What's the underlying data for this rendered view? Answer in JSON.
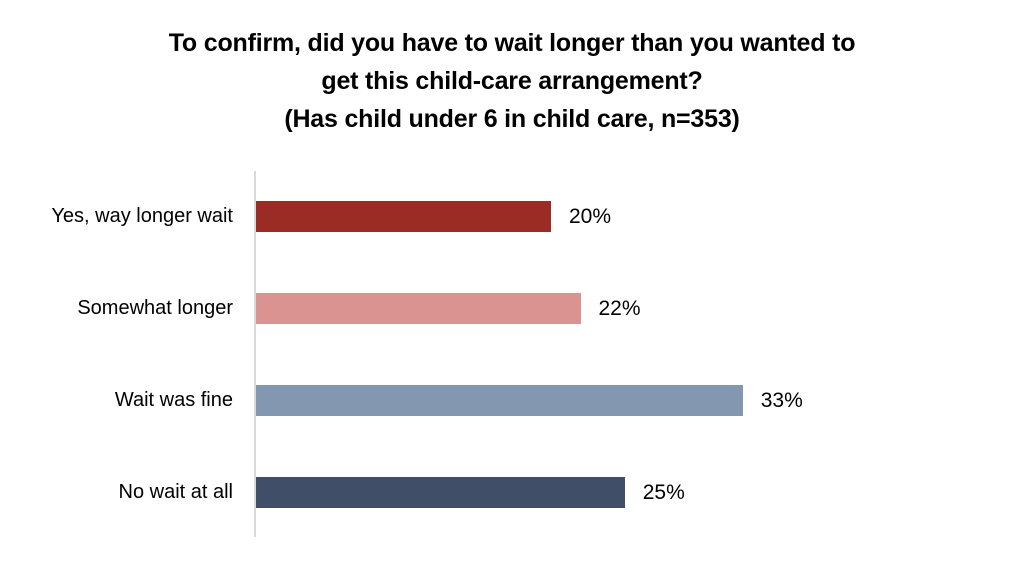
{
  "title": {
    "lines": [
      "To confirm, did you have to wait longer than you wanted to",
      "get this child-care arrangement?",
      "(Has child under 6 in child care, n=353)"
    ]
  },
  "chart_data": {
    "type": "bar",
    "orientation": "horizontal",
    "title": "To confirm, did you have to wait longer than you wanted to get this child-care arrangement? (Has child under 6 in child care, n=353)",
    "categories": [
      "Yes, way longer wait",
      "Somewhat longer",
      "Wait was fine",
      "No wait at all"
    ],
    "values": [
      20,
      22,
      33,
      25
    ],
    "value_labels": [
      "20%",
      "22%",
      "33%",
      "25%"
    ],
    "bar_colors": [
      "#9a2b25",
      "#db9392",
      "#8497b0",
      "#404f67"
    ],
    "xlabel": "",
    "ylabel": "",
    "xlim": [
      0,
      50
    ],
    "grid": false,
    "legend": false,
    "axis_line_color": "#d9d9d9",
    "data_label_position": "outside-end",
    "category_label_position": "left"
  }
}
